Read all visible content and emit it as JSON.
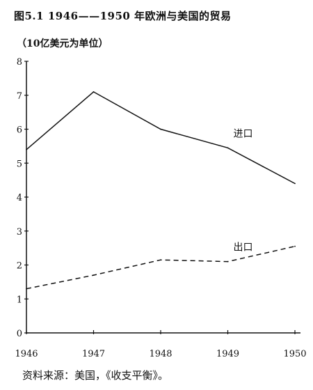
{
  "figure": {
    "title": "图5.1 1946——1950 年欧洲与美国的贸易",
    "unit_label": "（10亿美元为单位）",
    "source": "资料来源：美国，《收支平衡》。"
  },
  "chart_data": {
    "type": "line",
    "x": [
      1946,
      1947,
      1948,
      1949,
      1950
    ],
    "x_tick_labels": [
      "1946",
      "1947",
      "1948",
      "1949",
      "1950"
    ],
    "y_ticks": [
      0,
      1,
      2,
      3,
      4,
      5,
      6,
      7,
      8
    ],
    "ylim": [
      0,
      8
    ],
    "xlim": [
      1946,
      1950
    ],
    "grid": false,
    "series": [
      {
        "name": "进口",
        "style": "solid",
        "values": [
          5.4,
          7.1,
          6.0,
          5.45,
          4.4
        ]
      },
      {
        "name": "出口",
        "style": "dashed",
        "values": [
          1.3,
          1.7,
          2.15,
          2.1,
          2.55
        ]
      }
    ]
  }
}
